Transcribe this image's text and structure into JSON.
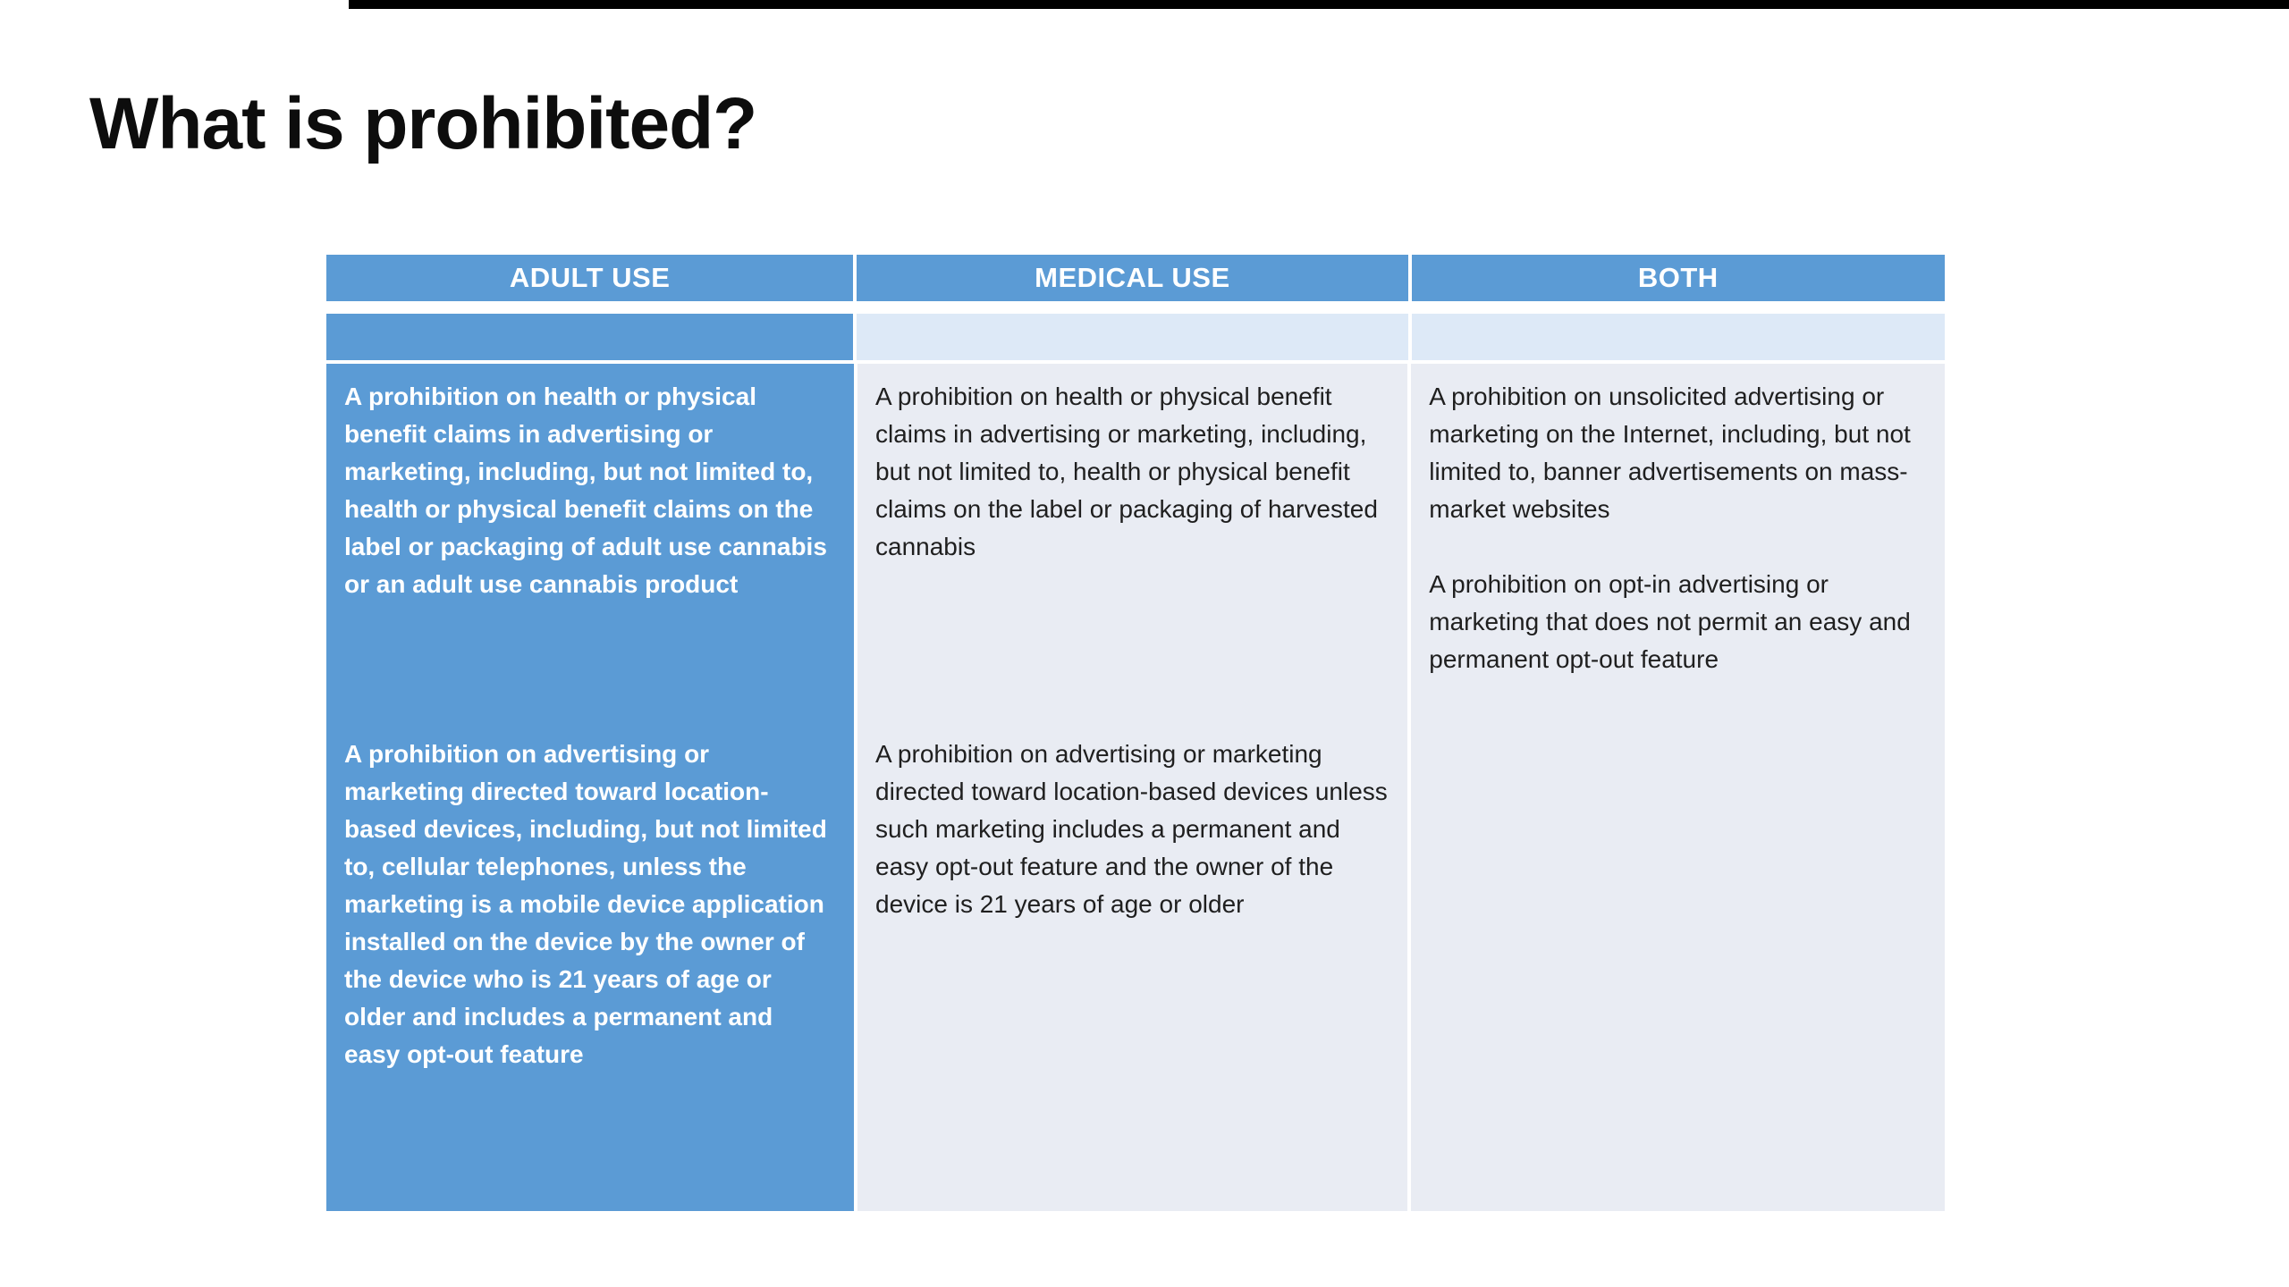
{
  "slide": {
    "title": "What is prohibited?"
  },
  "colors": {
    "header_blue": "#5B9BD5",
    "column_blue": "#5B9BD5",
    "band_light": "#DDE9F7",
    "cell_light": "#E9ECF3",
    "text_dark": "#1f1f1f",
    "text_light": "#FFFFFF"
  },
  "table": {
    "headers": [
      "ADULT USE",
      "MEDICAL USE",
      "BOTH"
    ],
    "rows": {
      "row1": {
        "adult": "A prohibition on health or physical benefit claims in advertising or marketing, including, but not limited to, health or physical benefit claims on the label or packaging of adult use cannabis or an adult use cannabis product",
        "medical": "A prohibition on health or physical benefit claims in advertising or marketing, including, but not limited to, health or physical benefit claims on the label or packaging of harvested cannabis",
        "both_p1": "A prohibition on unsolicited advertising or marketing on the Internet, including, but not limited to, banner advertisements on mass-market websites",
        "both_p2": "A prohibition on opt-in advertising or marketing that does not permit an easy and permanent opt-out feature"
      },
      "row2": {
        "adult": "A prohibition on advertising or marketing directed toward location-based devices, including, but not limited to, cellular telephones, unless the marketing is a mobile device application installed on the device by the owner of the device who is 21 years of age or older and includes a permanent and easy opt-out feature",
        "medical": "A prohibition on advertising or marketing directed toward location-based devices unless such marketing includes a permanent and easy opt-out feature and the owner of the device is 21 years of age or older",
        "both": ""
      }
    }
  }
}
